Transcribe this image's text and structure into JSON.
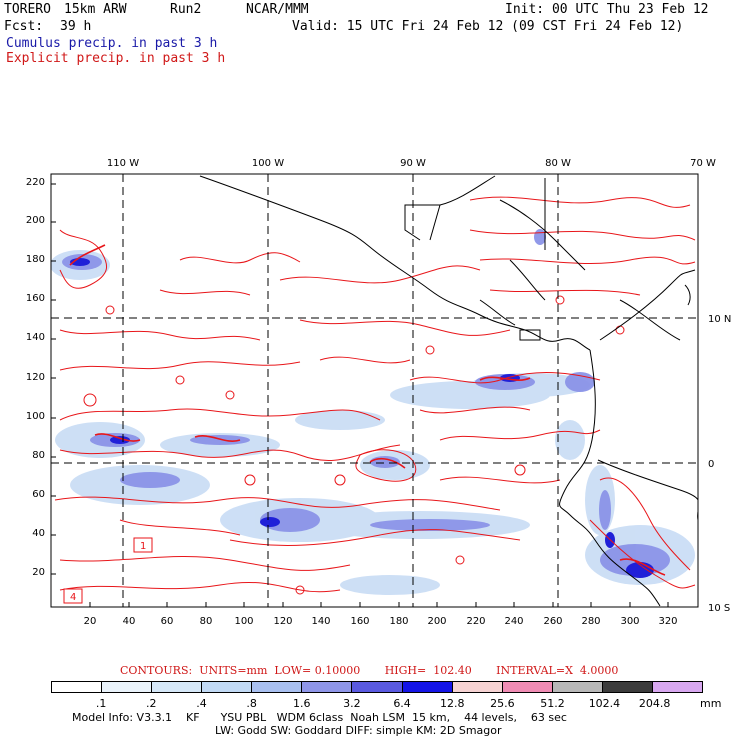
{
  "header": {
    "model": "TORERO",
    "resolution": "15km ARW",
    "run": "Run2",
    "org": "NCAR/MMM",
    "init": "Init: 00 UTC Thu 23 Feb 12",
    "fcst_label": "Fcst:",
    "fcst_value": "39 h",
    "valid": "Valid: 15 UTC Fri 24 Feb 12 (09 CST Fri 24 Feb 12)",
    "field1": "Cumulus precip. in past 3 h",
    "field2": "Explicit precip. in past 3 h"
  },
  "map": {
    "lon_labels": [
      "110 W",
      "100 W",
      "90 W",
      "80 W",
      "70 W"
    ],
    "lat_labels": [
      "10 N",
      "0",
      "10 S"
    ],
    "x_ticks": [
      "20",
      "40",
      "60",
      "80",
      "100",
      "120",
      "140",
      "160",
      "180",
      "200",
      "220",
      "240",
      "260",
      "280",
      "300",
      "320"
    ],
    "y_ticks": [
      "220",
      "200",
      "180",
      "160",
      "140",
      "120",
      "100",
      "80",
      "60",
      "40",
      "20"
    ],
    "box_labels": [
      "1",
      "4"
    ],
    "contour_color": "#e8161a",
    "coast_color": "#000000"
  },
  "contour_info": {
    "text": "CONTOURS:  UNITS=mm  LOW= 0.10000       HIGH=  102.40       INTERVAL=X  4.0000"
  },
  "colorbar": {
    "labels": [
      ".1",
      ".2",
      ".4",
      ".8",
      "1.6",
      "3.2",
      "6.4",
      "12.8",
      "25.6",
      "51.2",
      "102.4",
      "204.8"
    ],
    "units": "mm",
    "colors": [
      "#ffffff",
      "#eaf3fb",
      "#d6e8f8",
      "#c2daf5",
      "#a9c0f0",
      "#8f96e8",
      "#5a5ae0",
      "#1414e6",
      "#f6d3d3",
      "#f08cb4",
      "#b8b8b8",
      "#3c3c3c",
      "#d8a8f0"
    ]
  },
  "footer": {
    "line1": "Model Info: V3.3.1    KF      YSU PBL   WDM 6class  Noah LSM  15 km,    44 levels,    63 sec",
    "line2": "LW: Godd SW: Goddard DIFF: simple KM: 2D Smagor"
  }
}
